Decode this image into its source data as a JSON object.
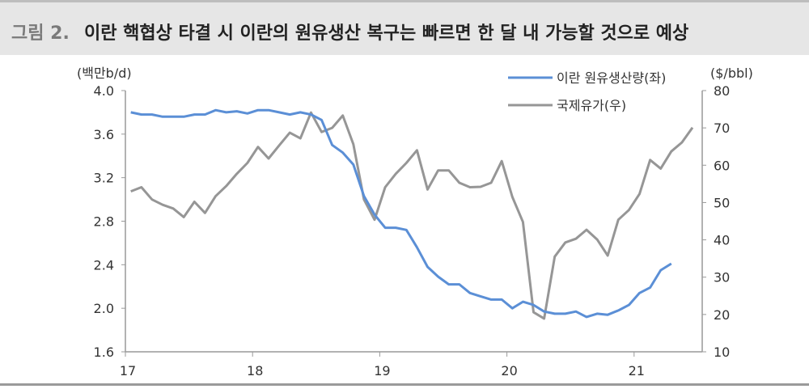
{
  "figure": {
    "label": "그림 2.",
    "title": "이란 핵협상 타결 시 이란의 원유생산 복구는 빠르면 한 달 내 가능할 것으로 예상"
  },
  "chart_data": {
    "type": "line",
    "y_left_label": "(백만b/d)",
    "y_right_label": "($/bbl)",
    "y_left_lim": [
      1.6,
      4.0
    ],
    "y_left_ticks": [
      "4.0",
      "3.6",
      "3.2",
      "2.8",
      "2.4",
      "2.0",
      "1.6"
    ],
    "y_right_lim": [
      10,
      80
    ],
    "y_right_ticks": [
      "80",
      "70",
      "60",
      "50",
      "40",
      "30",
      "20",
      "10"
    ],
    "x_ticks": [
      "17",
      "18",
      "19",
      "20",
      "21"
    ],
    "legend_position": "top-right",
    "grid": false,
    "x_start": "2017-01",
    "series": [
      {
        "name": "이란 원유생산량(좌)",
        "axis": "left",
        "color": "#5b8fd6",
        "values": [
          3.8,
          3.78,
          3.78,
          3.76,
          3.76,
          3.76,
          3.78,
          3.78,
          3.82,
          3.8,
          3.81,
          3.79,
          3.82,
          3.82,
          3.8,
          3.78,
          3.8,
          3.78,
          3.73,
          3.5,
          3.43,
          3.32,
          3.03,
          2.86,
          2.74,
          2.74,
          2.72,
          2.56,
          2.38,
          2.29,
          2.22,
          2.22,
          2.14,
          2.11,
          2.08,
          2.08,
          2.0,
          2.06,
          2.03,
          1.97,
          1.95,
          1.95,
          1.97,
          1.92,
          1.95,
          1.94,
          1.98,
          2.03,
          2.14,
          2.19,
          2.35,
          2.41
        ]
      },
      {
        "name": "국제유가(우)",
        "axis": "right",
        "color": "#969696",
        "values": [
          53.0,
          54.1,
          50.8,
          49.4,
          48.4,
          46.1,
          50.2,
          47.2,
          51.7,
          54.4,
          57.7,
          60.6,
          64.9,
          61.8,
          65.3,
          68.7,
          67.2,
          74.1,
          68.9,
          70.0,
          73.3,
          65.6,
          50.8,
          45.4,
          54.1,
          57.7,
          60.6,
          64.0,
          53.5,
          58.6,
          58.6,
          55.3,
          54.1,
          54.2,
          55.3,
          61.1,
          51.5,
          44.8,
          20.6,
          18.9,
          35.5,
          39.3,
          40.3,
          42.7,
          40.1,
          35.8,
          45.4,
          48.0,
          52.3,
          61.4,
          59.1,
          63.7,
          66.1,
          70.1
        ]
      }
    ]
  }
}
